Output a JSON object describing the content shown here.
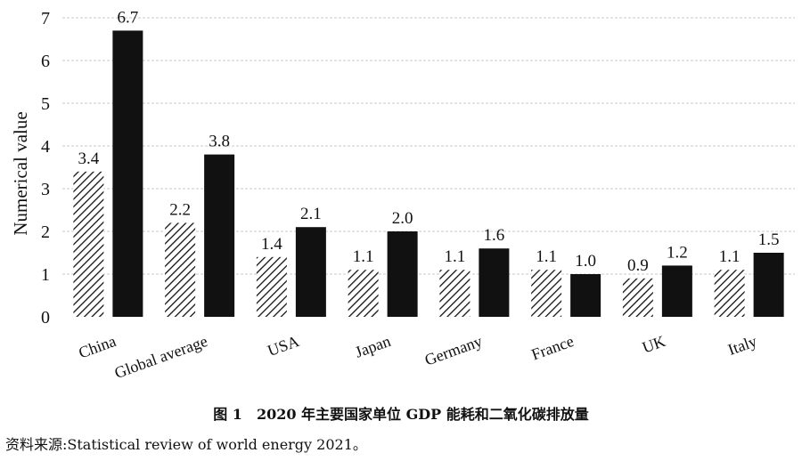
{
  "chart_data": {
    "type": "bar",
    "categories": [
      "China",
      "Global average",
      "USA",
      "Japan",
      "Germany",
      "France",
      "UK",
      "Italy"
    ],
    "series": [
      {
        "values": [
          3.4,
          2.2,
          1.4,
          1.1,
          1.1,
          1.1,
          0.9,
          1.1
        ],
        "style": "hatched"
      },
      {
        "values": [
          6.7,
          3.8,
          2.1,
          2.0,
          1.6,
          1.0,
          1.2,
          1.5
        ],
        "style": "solid",
        "color": "#111111"
      }
    ],
    "value_labels": [
      [
        "3.4",
        "2.2",
        "1.4",
        "1.1",
        "1.1",
        "1.1",
        "0.9",
        "1.1"
      ],
      [
        "6.7",
        "3.8",
        "2.1",
        "2.0",
        "1.6",
        "1.0",
        "1.2",
        "1.5"
      ]
    ],
    "ylabel": "Numerical value",
    "ylim": [
      0,
      7
    ],
    "yticks": [
      "0",
      "1",
      "2",
      "3",
      "4",
      "5",
      "6",
      "7"
    ],
    "grid": true
  },
  "caption": "图 1　2020 年主要国家单位 GDP 能耗和二氧化碳排放量",
  "source": "资料来源:Statistical review of world energy 2021。"
}
